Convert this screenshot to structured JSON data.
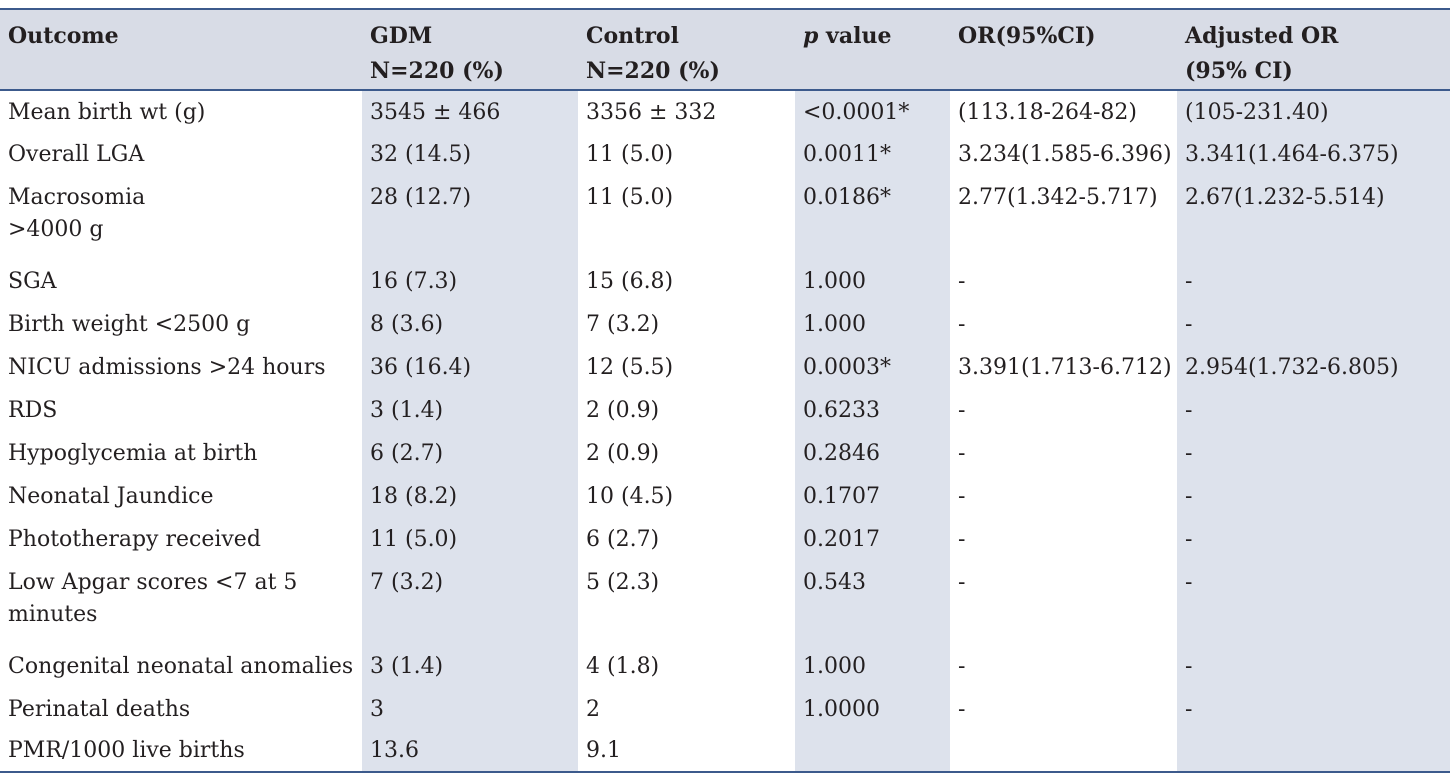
{
  "table": {
    "headers": [
      {
        "line1": "Outcome",
        "line2": ""
      },
      {
        "line1": "GDM",
        "line2": "N=220 (%)"
      },
      {
        "line1": "Control",
        "line2": "N=220 (%)"
      },
      {
        "line1_italic": "p",
        "line1": " value",
        "line2": ""
      },
      {
        "line1": "OR(95%CI)",
        "line2": ""
      },
      {
        "line1": "Adjusted OR",
        "line2": "(95% CI)"
      }
    ],
    "rows": [
      {
        "outcome": "Mean birth wt (g)",
        "gdm": "3545 ± 466",
        "control": "3356 ± 332",
        "p": "<0.0001*",
        "or": "(113.18-264-82)",
        "aor": "(105-231.40)"
      },
      {
        "outcome": "Overall LGA",
        "gdm": "32 (14.5)",
        "control": "11 (5.0)",
        "p": "0.0011*",
        "or": "3.234(1.585-6.396)",
        "aor": "3.341(1.464-6.375)"
      },
      {
        "outcome": "Macrosomia",
        "outcome2": ">4000 g",
        "gdm": "28 (12.7)",
        "control": "11 (5.0)",
        "p": "0.0186*",
        "or": "2.77(1.342-5.717)",
        "aor": "2.67(1.232-5.514)"
      },
      {
        "outcome": "SGA",
        "gdm": "16 (7.3)",
        "control": "15 (6.8)",
        "p": "1.000",
        "or": "-",
        "aor": "-"
      },
      {
        "outcome": "Birth weight <2500 g",
        "gdm": "8 (3.6)",
        "control": "7 (3.2)",
        "p": "1.000",
        "or": "-",
        "aor": "-"
      },
      {
        "outcome": "NICU admissions >24 hours",
        "gdm": "36 (16.4)",
        "control": "12 (5.5)",
        "p": "0.0003*",
        "or": "3.391(1.713-6.712)",
        "aor": "2.954(1.732-6.805)"
      },
      {
        "outcome": "RDS",
        "gdm": "3 (1.4)",
        "control": "2 (0.9)",
        "p": "0.6233",
        "or": "-",
        "aor": "-"
      },
      {
        "outcome": "Hypoglycemia at birth",
        "gdm": "6 (2.7)",
        "control": "2 (0.9)",
        "p": "0.2846",
        "or": "-",
        "aor": "-"
      },
      {
        "outcome": "Neonatal Jaundice",
        "gdm": "18 (8.2)",
        "control": "10 (4.5)",
        "p": "0.1707",
        "or": "-",
        "aor": "-"
      },
      {
        "outcome": "Phototherapy received",
        "gdm": "11 (5.0)",
        "control": "6 (2.7)",
        "p": "0.2017",
        "or": "-",
        "aor": "-"
      },
      {
        "outcome": "Low Apgar scores <7 at 5",
        "outcome2": "minutes",
        "gdm": "7 (3.2)",
        "control": "5 (2.3)",
        "p": "0.543",
        "or": "-",
        "aor": "-"
      },
      {
        "outcome": "Congenital neonatal anomalies",
        "gdm": "3 (1.4)",
        "control": "4 (1.8)",
        "p": "1.000",
        "or": "-",
        "aor": "-"
      },
      {
        "outcome": "Perinatal deaths",
        "gdm": "3",
        "control": "2",
        "p": "1.0000",
        "or": "-",
        "aor": "-"
      },
      {
        "outcome": "PMR/1000 live births",
        "gdm": "13.6",
        "control": "9.1",
        "p": "",
        "or": "",
        "aor": ""
      }
    ]
  }
}
